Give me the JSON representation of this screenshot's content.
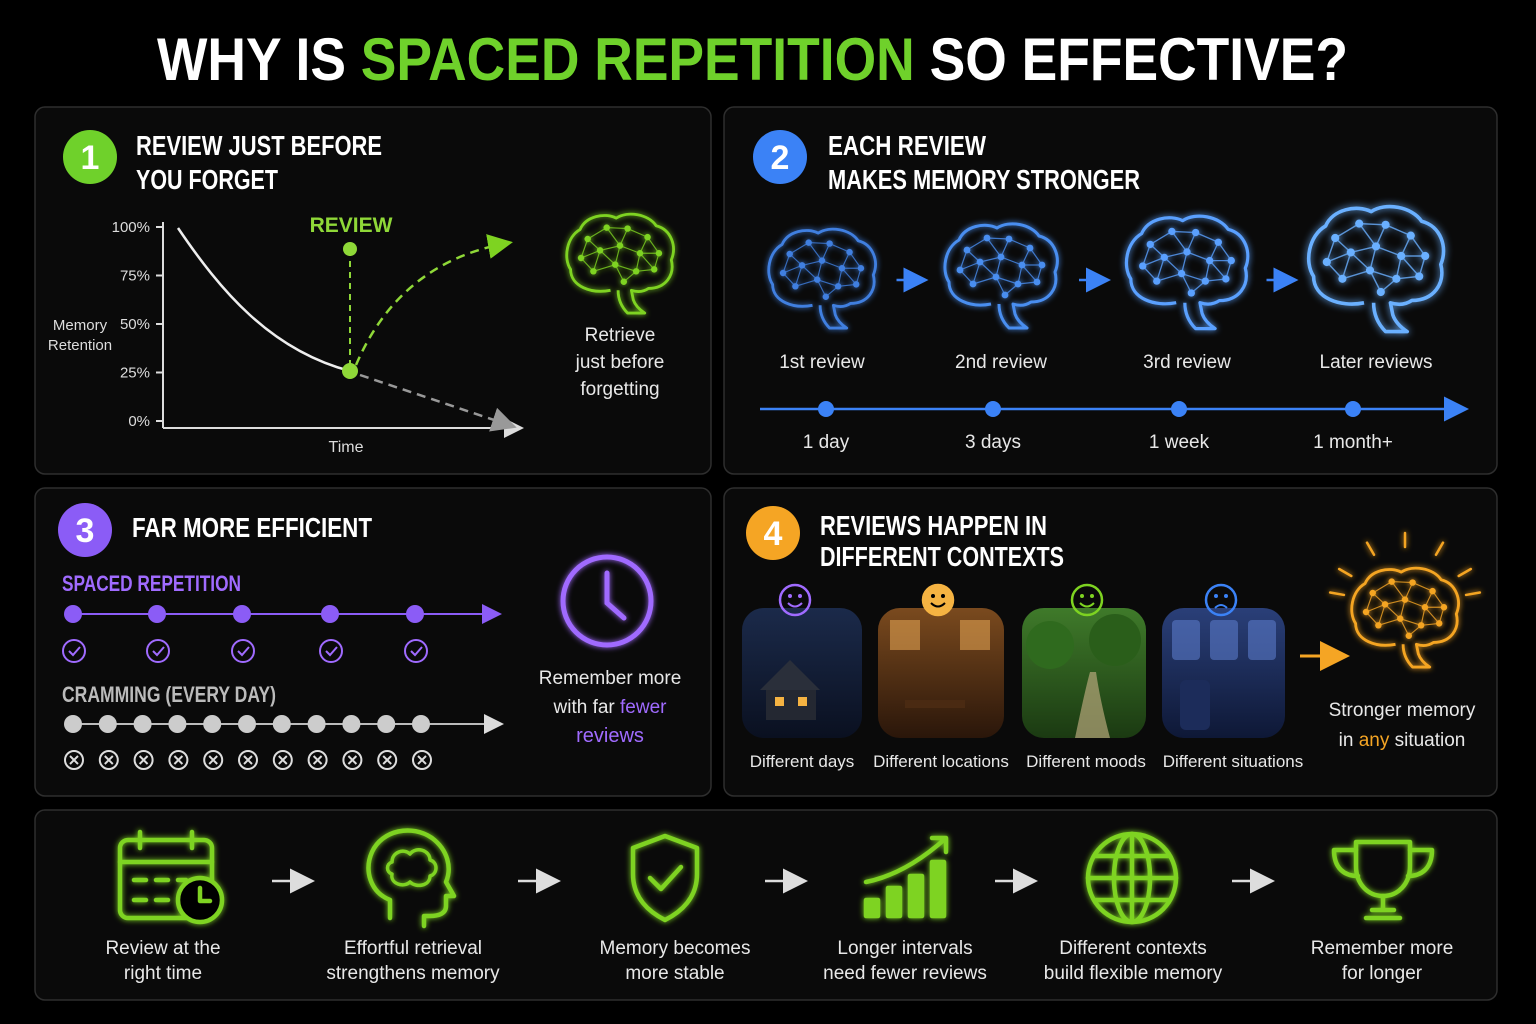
{
  "title": {
    "parts": [
      "WHY IS",
      "SPACED REPETITION",
      "SO EFFECTIVE?"
    ]
  },
  "panels": [
    {
      "number": "1",
      "title": [
        "REVIEW JUST BEFORE",
        "YOU FORGET"
      ],
      "chart": {
        "yticks": [
          {
            "value": 100,
            "label": "100%"
          },
          {
            "value": 75,
            "label": "75%"
          },
          {
            "value": 50,
            "label": "50%"
          },
          {
            "value": 25,
            "label": "25%"
          },
          {
            "value": 0,
            "label": "0%"
          }
        ],
        "ylabel": [
          "Memory",
          "Retention"
        ],
        "xlabel": "Time",
        "annotation": "REVIEW"
      },
      "caption": [
        "Retrieve",
        "just before",
        "forgetting"
      ]
    },
    {
      "number": "2",
      "title": [
        "EACH REVIEW",
        "MAKES MEMORY STRONGER"
      ],
      "stages": [
        {
          "label": "1st review",
          "interval": "1 day"
        },
        {
          "label": "2nd review",
          "interval": "3 days"
        },
        {
          "label": "3rd review",
          "interval": "1 week"
        },
        {
          "label": "Later reviews",
          "interval": "1 month+"
        }
      ]
    },
    {
      "number": "3",
      "title": [
        "FAR MORE EFFICIENT"
      ],
      "spaced_label": "SPACED REPETITION",
      "cramming_label": "CRAMMING (EVERY DAY)",
      "caption": {
        "lines": [
          "Remember more",
          "with far"
        ],
        "highlight": [
          "fewer",
          "reviews"
        ]
      }
    },
    {
      "number": "4",
      "title": [
        "REVIEWS HAPPEN IN",
        "DIFFERENT CONTEXTS"
      ],
      "contexts": [
        "Different days",
        "Different locations",
        "Different moods",
        "Different situations"
      ],
      "caption": {
        "line1": "Stronger memory",
        "line2": [
          "in",
          "any",
          "situation"
        ]
      }
    }
  ],
  "flow": {
    "steps": [
      [
        "Review at the",
        "right time"
      ],
      [
        "Effortful retrieval",
        "strengthens memory"
      ],
      [
        "Memory becomes",
        "more stable"
      ],
      [
        "Longer intervals",
        "need fewer reviews"
      ],
      [
        "Different contexts",
        "build flexible memory"
      ],
      [
        "Remember more",
        "for longer"
      ]
    ]
  }
}
